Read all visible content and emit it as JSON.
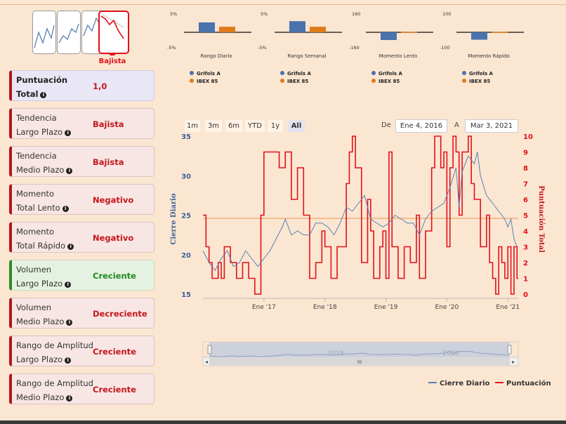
{
  "trend_widget": {
    "label": "Bajista"
  },
  "scores": [
    {
      "line1": "Puntuación",
      "line2": "Total",
      "value": "1,0",
      "kind": "total"
    },
    {
      "line1": "Tendencia",
      "line2": "Largo Plazo",
      "value": "Bajista",
      "kind": "bad"
    },
    {
      "line1": "Tendencia",
      "line2": "Medio Plazo",
      "value": "Bajista",
      "kind": "bad"
    },
    {
      "line1": "Momento",
      "line2": "Total Lento",
      "value": "Negativo",
      "kind": "bad"
    },
    {
      "line1": "Momento",
      "line2": "Total Rápido",
      "value": "Negativo",
      "kind": "bad"
    },
    {
      "line1": "Volumen",
      "line2": "Largo Plazo",
      "value": "Creciente",
      "kind": "good"
    },
    {
      "line1": "Volumen",
      "line2": "Medio Plazo",
      "value": "Decreciente",
      "kind": "bad"
    },
    {
      "line1": "Rango de Amplitud",
      "line2": "Largo Plazo",
      "value": "Creciente",
      "kind": "bad"
    },
    {
      "line1": "Rango de Amplitud",
      "line2": "Medio Plazo",
      "value": "Creciente",
      "kind": "bad"
    }
  ],
  "range_selector": {
    "buttons": [
      "1m",
      "3m",
      "6m",
      "YTD",
      "1y",
      "All"
    ],
    "selected": "All",
    "from_label": "De",
    "from_value": "Ene 4, 2016",
    "to_label": "A",
    "to_value": "Mar 3, 2021"
  },
  "colors": {
    "grifols": "#4a72ad",
    "ibex": "#e07b1a",
    "price": "#5b7fb5",
    "score": "#e3101a"
  },
  "chart_data": [
    {
      "type": "bar",
      "title": "Rango Diario",
      "ylim_labels": [
        "5%",
        "-5%"
      ],
      "ylim": [
        -5,
        5
      ],
      "series": [
        {
          "name": "Grifols A",
          "values": [
            3.2
          ]
        },
        {
          "name": "IBEX 85",
          "values": [
            1.8
          ]
        }
      ]
    },
    {
      "type": "bar",
      "title": "Rango Semanal",
      "ylim_labels": [
        "5%",
        "-5%"
      ],
      "ylim": [
        -5,
        5
      ],
      "series": [
        {
          "name": "Grifols A",
          "values": [
            3.6
          ]
        },
        {
          "name": "IBEX 85",
          "values": [
            1.8
          ]
        }
      ]
    },
    {
      "type": "bar",
      "title": "Momento Lento",
      "ylim_labels": [
        "160",
        "-160"
      ],
      "ylim": [
        -160,
        160
      ],
      "series": [
        {
          "name": "Grifols A",
          "values": [
            -80
          ]
        },
        {
          "name": "IBEX 85",
          "values": [
            5
          ]
        }
      ]
    },
    {
      "type": "bar",
      "title": "Momento Rápido",
      "ylim_labels": [
        "100",
        "-100"
      ],
      "ylim": [
        -100,
        100
      ],
      "series": [
        {
          "name": "Grifols A",
          "values": [
            -48
          ]
        },
        {
          "name": "IBEX 85",
          "values": [
            3
          ]
        }
      ]
    },
    {
      "type": "line",
      "title": "",
      "ylabel": "Cierre Diario",
      "y2label": "Puntuación Total",
      "ylim": [
        15,
        35
      ],
      "y2lim": [
        0,
        10
      ],
      "yticks": [
        15,
        20,
        25,
        30,
        35
      ],
      "y2ticks": [
        0,
        1,
        2,
        3,
        4,
        5,
        6,
        7,
        8,
        9,
        10
      ],
      "xlim": [
        2016.0,
        2021.17
      ],
      "xticks": [
        {
          "x": 2017,
          "label": "Ene '17"
        },
        {
          "x": 2018,
          "label": "Ene '18"
        },
        {
          "x": 2019,
          "label": "Ene '19"
        },
        {
          "x": 2020,
          "label": "Ene '20"
        },
        {
          "x": 2021,
          "label": "Ene '21"
        }
      ],
      "reference_line": {
        "axis": "y2",
        "value": 4.8
      },
      "legend": [
        "Cierre Diario",
        "Puntuación"
      ],
      "navigator_labels": [
        "2018",
        "2020"
      ],
      "series": [
        {
          "name": "Cierre Diario",
          "axis": "y",
          "points": [
            [
              2016.0,
              20.5
            ],
            [
              2016.1,
              19.0
            ],
            [
              2016.2,
              18.0
            ],
            [
              2016.3,
              19.5
            ],
            [
              2016.4,
              20.5
            ],
            [
              2016.5,
              18.5
            ],
            [
              2016.6,
              19.0
            ],
            [
              2016.7,
              20.5
            ],
            [
              2016.8,
              19.5
            ],
            [
              2016.9,
              18.5
            ],
            [
              2017.0,
              19.5
            ],
            [
              2017.1,
              20.5
            ],
            [
              2017.2,
              22.0
            ],
            [
              2017.3,
              23.5
            ],
            [
              2017.35,
              24.5
            ],
            [
              2017.45,
              22.5
            ],
            [
              2017.55,
              23.0
            ],
            [
              2017.65,
              22.5
            ],
            [
              2017.75,
              22.5
            ],
            [
              2017.85,
              24.0
            ],
            [
              2017.95,
              24.0
            ],
            [
              2018.05,
              23.5
            ],
            [
              2018.15,
              22.5
            ],
            [
              2018.25,
              24.0
            ],
            [
              2018.35,
              26.0
            ],
            [
              2018.45,
              25.5
            ],
            [
              2018.55,
              26.5
            ],
            [
              2018.65,
              27.5
            ],
            [
              2018.75,
              24.5
            ],
            [
              2018.85,
              24.0
            ],
            [
              2018.95,
              23.5
            ],
            [
              2019.05,
              24.0
            ],
            [
              2019.15,
              25.0
            ],
            [
              2019.25,
              24.5
            ],
            [
              2019.35,
              24.0
            ],
            [
              2019.45,
              24.0
            ],
            [
              2019.55,
              22.5
            ],
            [
              2019.65,
              24.5
            ],
            [
              2019.75,
              25.5
            ],
            [
              2019.85,
              26.0
            ],
            [
              2019.95,
              26.5
            ],
            [
              2020.05,
              28.5
            ],
            [
              2020.15,
              31.0
            ],
            [
              2020.2,
              26.0
            ],
            [
              2020.25,
              30.5
            ],
            [
              2020.35,
              32.5
            ],
            [
              2020.45,
              31.5
            ],
            [
              2020.5,
              33.0
            ],
            [
              2020.55,
              30.0
            ],
            [
              2020.65,
              27.5
            ],
            [
              2020.75,
              26.5
            ],
            [
              2020.85,
              25.5
            ],
            [
              2020.95,
              24.5
            ],
            [
              2021.0,
              23.5
            ],
            [
              2021.05,
              24.5
            ],
            [
              2021.1,
              22.0
            ],
            [
              2021.15,
              21.0
            ]
          ]
        },
        {
          "name": "Puntuación",
          "axis": "y2",
          "points": [
            [
              2016.0,
              5
            ],
            [
              2016.05,
              3
            ],
            [
              2016.1,
              2
            ],
            [
              2016.15,
              1
            ],
            [
              2016.25,
              2
            ],
            [
              2016.3,
              1
            ],
            [
              2016.35,
              3
            ],
            [
              2016.45,
              2
            ],
            [
              2016.55,
              1
            ],
            [
              2016.65,
              2
            ],
            [
              2016.75,
              1
            ],
            [
              2016.85,
              0
            ],
            [
              2016.95,
              5
            ],
            [
              2017.0,
              9
            ],
            [
              2017.2,
              9
            ],
            [
              2017.25,
              8
            ],
            [
              2017.35,
              9
            ],
            [
              2017.45,
              6
            ],
            [
              2017.55,
              8
            ],
            [
              2017.65,
              5
            ],
            [
              2017.75,
              1
            ],
            [
              2017.85,
              2
            ],
            [
              2017.95,
              4
            ],
            [
              2018.0,
              3
            ],
            [
              2018.1,
              1
            ],
            [
              2018.2,
              3
            ],
            [
              2018.35,
              7
            ],
            [
              2018.4,
              9
            ],
            [
              2018.45,
              10
            ],
            [
              2018.5,
              8
            ],
            [
              2018.6,
              2
            ],
            [
              2018.7,
              6
            ],
            [
              2018.75,
              4
            ],
            [
              2018.8,
              1
            ],
            [
              2018.9,
              3
            ],
            [
              2018.95,
              4
            ],
            [
              2019.0,
              1
            ],
            [
              2019.05,
              9
            ],
            [
              2019.1,
              3
            ],
            [
              2019.2,
              1
            ],
            [
              2019.3,
              3
            ],
            [
              2019.4,
              2
            ],
            [
              2019.5,
              5
            ],
            [
              2019.55,
              1
            ],
            [
              2019.65,
              4
            ],
            [
              2019.75,
              8
            ],
            [
              2019.8,
              10
            ],
            [
              2019.9,
              8
            ],
            [
              2019.95,
              9
            ],
            [
              2020.0,
              3
            ],
            [
              2020.05,
              8
            ],
            [
              2020.1,
              10
            ],
            [
              2020.15,
              9
            ],
            [
              2020.2,
              5
            ],
            [
              2020.25,
              9
            ],
            [
              2020.35,
              10
            ],
            [
              2020.4,
              7
            ],
            [
              2020.45,
              6
            ],
            [
              2020.55,
              3
            ],
            [
              2020.65,
              5
            ],
            [
              2020.7,
              2
            ],
            [
              2020.75,
              1
            ],
            [
              2020.8,
              0
            ],
            [
              2020.85,
              3
            ],
            [
              2020.9,
              2
            ],
            [
              2020.95,
              1
            ],
            [
              2021.0,
              3
            ],
            [
              2021.05,
              0
            ],
            [
              2021.1,
              3
            ],
            [
              2021.15,
              1
            ]
          ]
        }
      ]
    }
  ]
}
